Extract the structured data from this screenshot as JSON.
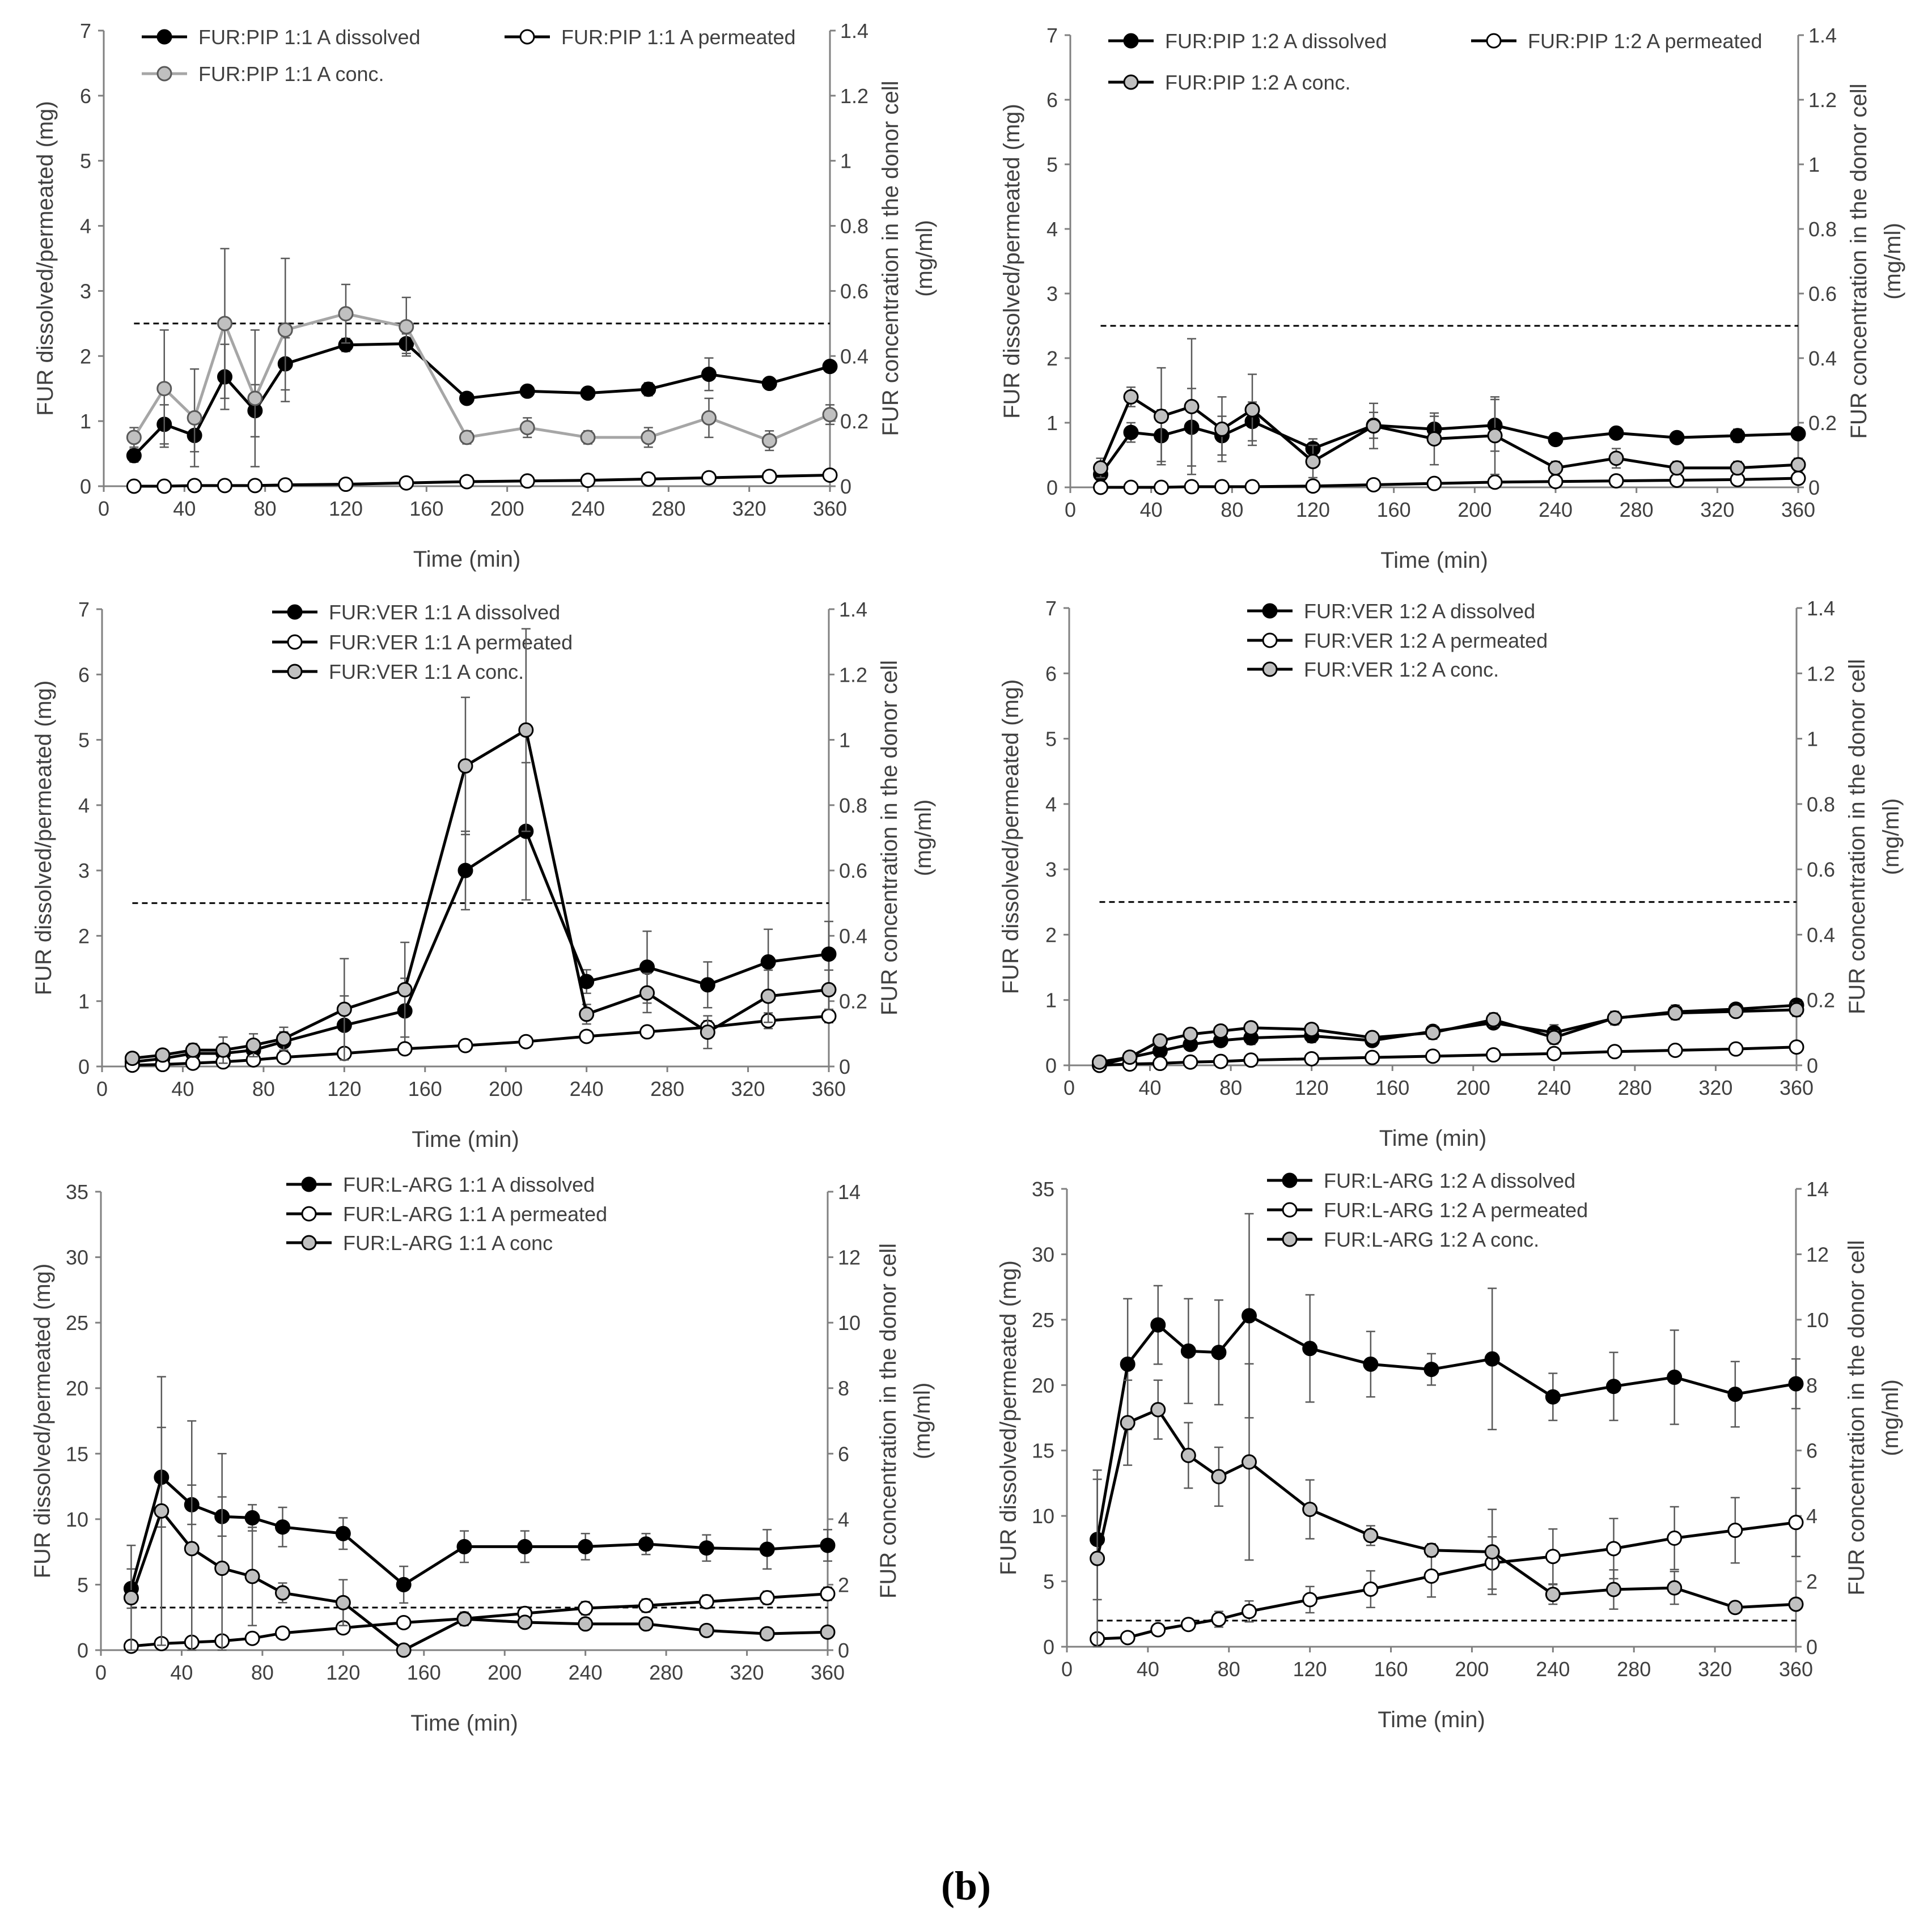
{
  "figure": {
    "caption": "(b)",
    "colors": {
      "dissolved": "#000000",
      "permeated": "#ffffff",
      "conc_fill": "#c0c0c0",
      "conc_line_gray": "#a6a6a6",
      "axis": "#808080",
      "text": "#404040"
    }
  },
  "chart_data": [
    {
      "type": "line",
      "id": "pip11",
      "x": [
        15,
        30,
        45,
        60,
        75,
        90,
        120,
        150,
        180,
        210,
        240,
        270,
        300,
        330,
        360
      ],
      "xlim": [
        0,
        360
      ],
      "xticks": [
        0,
        40,
        80,
        120,
        160,
        200,
        240,
        280,
        320,
        360
      ],
      "xlabel": "Time (min)",
      "ylabel": "FUR dissolved/permeated (mg)",
      "ylim": [
        0,
        7
      ],
      "yticks": [
        0,
        1,
        2,
        3,
        4,
        5,
        6,
        7
      ],
      "y2label_line1": "FUR concentration in the donor cell",
      "y2label_line2": "(mg/ml)",
      "y2lim": [
        0,
        1.4
      ],
      "y2ticks": [
        "0",
        "0.2",
        "0.4",
        "0.6",
        "0.8",
        "1",
        "1.2",
        "1.4"
      ],
      "threshold_y2": 0.5,
      "series": [
        {
          "name": "FUR:PIP 1:1 A dissolved",
          "style": "dissolved",
          "axis": "left",
          "values": [
            0.47,
            0.95,
            0.78,
            1.68,
            1.16,
            1.88,
            2.17,
            2.19,
            1.35,
            1.46,
            1.43,
            1.49,
            1.72,
            1.58,
            1.84
          ],
          "errors": [
            0.1,
            0.3,
            0.25,
            0.5,
            0.4,
            0.4,
            0.1,
            0.15,
            0.05,
            0.06,
            0.08,
            0.1,
            0.25,
            0.07,
            0.07
          ]
        },
        {
          "name": "FUR:PIP 1:1 A permeated",
          "style": "permeated",
          "axis": "left",
          "values": [
            0.0,
            0.0,
            0.01,
            0.01,
            0.01,
            0.02,
            0.03,
            0.05,
            0.07,
            0.08,
            0.09,
            0.11,
            0.13,
            0.15,
            0.17
          ],
          "errors": [
            0,
            0,
            0,
            0,
            0,
            0,
            0,
            0,
            0,
            0,
            0,
            0,
            0,
            0,
            0
          ]
        },
        {
          "name": "FUR:PIP 1:1 A conc.",
          "style": "conc_gray",
          "axis": "right",
          "values": [
            0.15,
            0.3,
            0.21,
            0.5,
            0.27,
            0.48,
            0.53,
            0.49,
            0.15,
            0.18,
            0.15,
            0.15,
            0.21,
            0.14,
            0.22
          ],
          "errors": [
            0.03,
            0.18,
            0.15,
            0.23,
            0.21,
            0.22,
            0.09,
            0.09,
            0.02,
            0.03,
            0.02,
            0.03,
            0.06,
            0.03,
            0.03
          ]
        }
      ]
    },
    {
      "type": "line",
      "id": "pip12",
      "x": [
        15,
        30,
        45,
        60,
        75,
        90,
        120,
        150,
        180,
        210,
        240,
        270,
        300,
        330,
        360
      ],
      "xlim": [
        0,
        360
      ],
      "xticks": [
        0,
        40,
        80,
        120,
        160,
        200,
        240,
        280,
        320,
        360
      ],
      "xlabel": "Time (min)",
      "ylabel": "FUR dissolved/permeated (mg)",
      "ylim": [
        0,
        7
      ],
      "yticks": [
        0,
        1,
        2,
        3,
        4,
        5,
        6,
        7
      ],
      "y2label_line1": "FUR concentration in the donor cell",
      "y2label_line2": "(mg/ml)",
      "y2lim": [
        0,
        1.4
      ],
      "y2ticks": [
        "0",
        "0.2",
        "0.4",
        "0.6",
        "0.8",
        "1",
        "1.2",
        "1.4"
      ],
      "threshold_y2": 0.5,
      "series": [
        {
          "name": "FUR:PIP 1:2 A dissolved",
          "style": "dissolved",
          "axis": "left",
          "values": [
            0.2,
            0.85,
            0.8,
            0.93,
            0.8,
            1.02,
            0.6,
            0.96,
            0.9,
            0.96,
            0.74,
            0.84,
            0.77,
            0.8,
            0.83
          ],
          "errors": [
            0.1,
            0.15,
            0.4,
            0.6,
            0.3,
            0.3,
            0.15,
            0.2,
            0.2,
            0.4,
            0.07,
            0.08,
            0.06,
            0.1,
            0.08
          ]
        },
        {
          "name": "FUR:PIP 1:2 A permeated",
          "style": "permeated",
          "axis": "left",
          "values": [
            0.0,
            0.0,
            0.0,
            0.01,
            0.01,
            0.01,
            0.02,
            0.04,
            0.06,
            0.08,
            0.09,
            0.1,
            0.11,
            0.12,
            0.14
          ],
          "errors": [
            0,
            0,
            0,
            0,
            0,
            0,
            0,
            0,
            0,
            0,
            0,
            0,
            0,
            0,
            0
          ]
        },
        {
          "name": "FUR:PIP 1:2 A conc.",
          "style": "conc",
          "axis": "right",
          "values": [
            0.06,
            0.28,
            0.22,
            0.25,
            0.18,
            0.24,
            0.08,
            0.19,
            0.15,
            0.16,
            0.06,
            0.09,
            0.06,
            0.06,
            0.07
          ],
          "errors": [
            0.03,
            0.03,
            0.15,
            0.21,
            0.1,
            0.11,
            0.05,
            0.07,
            0.08,
            0.12,
            0.02,
            0.03,
            0.02,
            0.02,
            0.02
          ]
        }
      ]
    },
    {
      "type": "line",
      "id": "ver11",
      "x": [
        15,
        30,
        45,
        60,
        75,
        90,
        120,
        150,
        180,
        210,
        240,
        270,
        300,
        330,
        360
      ],
      "xlim": [
        0,
        360
      ],
      "xticks": [
        0,
        40,
        80,
        120,
        160,
        200,
        240,
        280,
        320,
        360
      ],
      "xlabel": "Time (min)",
      "ylabel": "FUR dissolved/permeated (mg)",
      "ylim": [
        0,
        7
      ],
      "yticks": [
        0,
        1,
        2,
        3,
        4,
        5,
        6,
        7
      ],
      "y2label_line1": "FUR concentration in the donor cell",
      "y2label_line2": "(mg/ml)",
      "y2lim": [
        0,
        1.4
      ],
      "y2ticks": [
        "0",
        "0.2",
        "0.4",
        "0.6",
        "0.8",
        "1",
        "1.2",
        "1.4"
      ],
      "threshold_y2": 0.5,
      "series": [
        {
          "name": "FUR:VER 1:1 A dissolved",
          "style": "dissolved",
          "axis": "left",
          "values": [
            0.07,
            0.12,
            0.2,
            0.2,
            0.25,
            0.38,
            0.63,
            0.85,
            3.0,
            3.6,
            1.3,
            1.52,
            1.25,
            1.6,
            1.72
          ],
          "errors": [
            0.03,
            0.05,
            0.08,
            0.1,
            0.1,
            0.15,
            0.45,
            0.5,
            0.6,
            1.05,
            0.18,
            0.55,
            0.35,
            0.5,
            0.5
          ]
        },
        {
          "name": "FUR:VER 1:1 A permeated",
          "style": "permeated",
          "axis": "left",
          "values": [
            0.02,
            0.03,
            0.05,
            0.07,
            0.1,
            0.14,
            0.2,
            0.27,
            0.32,
            0.38,
            0.46,
            0.53,
            0.6,
            0.7,
            0.77
          ],
          "errors": [
            0.01,
            0.01,
            0.01,
            0.02,
            0.02,
            0.03,
            0.03,
            0.03,
            0.03,
            0.04,
            0.05,
            0.05,
            0.1,
            0.12,
            0.1
          ]
        },
        {
          "name": "FUR:VER 1:1 A conc.",
          "style": "conc",
          "axis": "right",
          "values": [
            0.025,
            0.035,
            0.05,
            0.05,
            0.065,
            0.085,
            0.175,
            0.235,
            0.92,
            1.03,
            0.16,
            0.225,
            0.105,
            0.215,
            0.235
          ],
          "errors": [
            0.01,
            0.015,
            0.02,
            0.04,
            0.035,
            0.035,
            0.155,
            0.145,
            0.21,
            0.31,
            0.03,
            0.06,
            0.05,
            0.08,
            0.06
          ]
        }
      ]
    },
    {
      "type": "line",
      "id": "ver12",
      "x": [
        15,
        30,
        45,
        60,
        75,
        90,
        120,
        150,
        180,
        210,
        240,
        270,
        300,
        330,
        360
      ],
      "xlim": [
        0,
        360
      ],
      "xticks": [
        0,
        40,
        80,
        120,
        160,
        200,
        240,
        280,
        320,
        360
      ],
      "xlabel": "Time (min)",
      "ylabel": "FUR dissolved/permeated (mg)",
      "ylim": [
        0,
        7
      ],
      "yticks": [
        0,
        1,
        2,
        3,
        4,
        5,
        6,
        7
      ],
      "y2label_line1": "FUR concentration in the donor cell",
      "y2label_line2": "(mg/ml)",
      "y2lim": [
        0,
        1.4
      ],
      "y2ticks": [
        "0",
        "0.2",
        "0.4",
        "0.6",
        "0.8",
        "1",
        "1.2",
        "1.4"
      ],
      "threshold_y2": 0.5,
      "series": [
        {
          "name": "FUR:VER 1:2 A dissolved",
          "style": "dissolved",
          "axis": "left",
          "values": [
            0.0,
            0.12,
            0.22,
            0.32,
            0.38,
            0.42,
            0.45,
            0.38,
            0.52,
            0.65,
            0.5,
            0.72,
            0.82,
            0.86,
            0.92
          ],
          "errors": [
            0.02,
            0.03,
            0.08,
            0.08,
            0.08,
            0.1,
            0.1,
            0.05,
            0.08,
            0.08,
            0.12,
            0.1,
            0.1,
            0.06,
            0.08
          ]
        },
        {
          "name": "FUR:VER 1:2 A permeated",
          "style": "permeated",
          "axis": "left",
          "values": [
            0.0,
            0.02,
            0.03,
            0.05,
            0.06,
            0.08,
            0.1,
            0.12,
            0.14,
            0.16,
            0.18,
            0.21,
            0.23,
            0.25,
            0.28
          ],
          "errors": [
            0,
            0,
            0,
            0,
            0,
            0,
            0,
            0,
            0,
            0,
            0,
            0,
            0,
            0,
            0
          ]
        },
        {
          "name": "FUR:VER 1:2 A conc.",
          "style": "conc",
          "axis": "right",
          "values": [
            0.01,
            0.025,
            0.075,
            0.095,
            0.105,
            0.115,
            0.11,
            0.085,
            0.1,
            0.14,
            0.085,
            0.145,
            0.16,
            0.165,
            0.17
          ],
          "errors": [
            0.005,
            0.005,
            0.015,
            0.015,
            0.01,
            0.01,
            0.01,
            0.01,
            0.02,
            0.02,
            0.02,
            0.02,
            0.02,
            0.01,
            0.02
          ]
        }
      ]
    },
    {
      "type": "line",
      "id": "arg11",
      "x": [
        15,
        30,
        45,
        60,
        75,
        90,
        120,
        150,
        180,
        210,
        240,
        270,
        300,
        330,
        360
      ],
      "xlim": [
        0,
        360
      ],
      "xticks": [
        0,
        40,
        80,
        120,
        160,
        200,
        240,
        280,
        320,
        360
      ],
      "xlabel": "Time (min)",
      "ylabel": "FUR dissolved/permeated (mg)",
      "ylim": [
        0,
        35
      ],
      "yticks": [
        0,
        5,
        10,
        15,
        20,
        25,
        30,
        35
      ],
      "y2label_line1": "FUR concentration in the donor cell",
      "y2label_line2": "(mg/ml)",
      "y2lim": [
        0,
        14
      ],
      "y2ticks": [
        "0",
        "2",
        "4",
        "6",
        "8",
        "10",
        "12",
        "14"
      ],
      "threshold_y2": 1.3,
      "series": [
        {
          "name": "FUR:L-ARG 1:1 A dissolved",
          "style": "dissolved",
          "axis": "left",
          "values": [
            4.7,
            13.2,
            11.1,
            10.2,
            10.1,
            9.4,
            8.9,
            5.0,
            7.9,
            7.9,
            7.9,
            8.1,
            7.8,
            7.7,
            8.0
          ],
          "errors": [
            1.5,
            3.8,
            1.5,
            1.5,
            1.0,
            1.5,
            1.2,
            1.4,
            1.2,
            1.2,
            1.0,
            0.8,
            1.0,
            1.5,
            1.2
          ]
        },
        {
          "name": "FUR:L-ARG 1:1 A permeated",
          "style": "permeated",
          "axis": "left",
          "values": [
            0.3,
            0.5,
            0.6,
            0.7,
            0.9,
            1.3,
            1.7,
            2.1,
            2.4,
            2.8,
            3.2,
            3.4,
            3.7,
            4.0,
            4.3
          ],
          "errors": [
            0.1,
            0.1,
            0.1,
            0.1,
            0.2,
            0.3,
            0.3,
            0.4,
            0.5,
            0.5,
            0.5,
            0.5,
            0.5,
            0.5,
            0.5
          ]
        },
        {
          "name": "FUR:L-ARG 1:1 A conc",
          "style": "conc",
          "axis": "right",
          "values": [
            1.6,
            4.25,
            3.1,
            2.5,
            2.25,
            1.75,
            1.45,
            0.0,
            0.95,
            0.85,
            0.8,
            0.8,
            0.6,
            0.5,
            0.55
          ],
          "errors": [
            1.6,
            4.1,
            3.9,
            3.5,
            1.5,
            0.3,
            0.7,
            0.1,
            0.2,
            0.1,
            0.1,
            0.1,
            0.1,
            0.1,
            0.1
          ]
        }
      ]
    },
    {
      "type": "line",
      "id": "arg12",
      "x": [
        15,
        30,
        45,
        60,
        75,
        90,
        120,
        150,
        180,
        210,
        240,
        270,
        300,
        330,
        360
      ],
      "xlim": [
        0,
        360
      ],
      "xticks": [
        0,
        40,
        80,
        120,
        160,
        200,
        240,
        280,
        320,
        360
      ],
      "xlabel": "Time (min)",
      "ylabel": "FUR dissolved/permeated (mg)",
      "ylim": [
        0,
        35
      ],
      "yticks": [
        0,
        5,
        10,
        15,
        20,
        25,
        30,
        35
      ],
      "y2label_line1": "FUR concentration in the donor cell",
      "y2label_line2": "(mg/ml)",
      "y2lim": [
        0,
        14
      ],
      "y2ticks": [
        "0",
        "2",
        "4",
        "6",
        "8",
        "10",
        "12",
        "14"
      ],
      "threshold_y2": 0.8,
      "series": [
        {
          "name": "FUR:L-ARG 1:2 A dissolved",
          "style": "dissolved",
          "axis": "left",
          "values": [
            8.2,
            21.6,
            24.6,
            22.6,
            22.5,
            25.3,
            22.8,
            21.6,
            21.2,
            22.0,
            19.1,
            19.9,
            20.6,
            19.3,
            20.1
          ],
          "errors": [
            4.6,
            5.0,
            3.0,
            4.0,
            4.0,
            7.8,
            4.1,
            2.5,
            1.2,
            5.4,
            1.8,
            2.6,
            3.6,
            2.5,
            1.9
          ]
        },
        {
          "name": "FUR:L-ARG 1:2 A permeated",
          "style": "permeated",
          "axis": "left",
          "values": [
            0.6,
            0.7,
            1.3,
            1.7,
            2.1,
            2.7,
            3.6,
            4.4,
            5.4,
            6.4,
            6.9,
            7.5,
            8.3,
            8.9,
            9.5
          ],
          "errors": [
            0.2,
            0.2,
            0.3,
            0.3,
            0.6,
            0.8,
            1.0,
            1.4,
            1.6,
            2.0,
            2.1,
            2.3,
            2.4,
            2.5,
            2.6
          ]
        },
        {
          "name": "FUR:L-ARG 1:2 A conc.",
          "style": "conc",
          "axis": "right",
          "values": [
            2.7,
            6.85,
            7.25,
            5.85,
            5.2,
            5.65,
            4.2,
            3.4,
            2.95,
            2.9,
            1.6,
            1.75,
            1.8,
            1.2,
            1.3
          ],
          "errors": [
            2.7,
            1.3,
            0.9,
            1.0,
            0.9,
            3.0,
            0.9,
            0.3,
            0.2,
            1.3,
            0.3,
            0.6,
            0.5,
            0.1,
            0.1
          ]
        }
      ]
    }
  ]
}
